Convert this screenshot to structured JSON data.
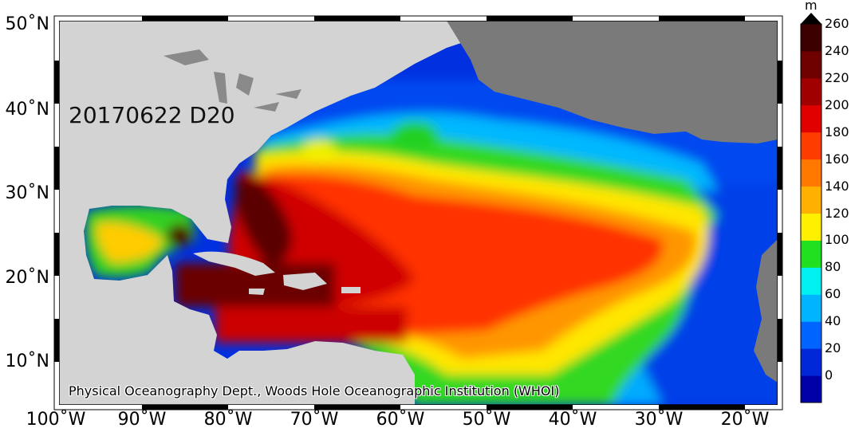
{
  "map": {
    "date_label": "20170622 D20",
    "credit": "Physical Oceanography Dept., Woods Hole Oceanographic Institution (WHOI)",
    "lat_labels": [
      "50˚N",
      "40˚N",
      "30˚N",
      "20˚N",
      "10˚N"
    ],
    "lon_labels": [
      "100˚W",
      "90˚W",
      "80˚W",
      "70˚W",
      "60˚W",
      "50˚W",
      "40˚W",
      "30˚W",
      "20˚W"
    ],
    "land_colors": {
      "north_america": "#d3d3d3",
      "europe_africa": "#7a7a7a"
    }
  },
  "colorbar": {
    "unit": "m",
    "tick_labels": [
      "260",
      "240",
      "220",
      "200",
      "180",
      "160",
      "140",
      "120",
      "100",
      "80",
      "60",
      "40",
      "20",
      "0"
    ],
    "colors": [
      "#0000a8",
      "#0028d8",
      "#0064ff",
      "#00b4ff",
      "#00f0f0",
      "#20e020",
      "#fff000",
      "#ffb000",
      "#ff7800",
      "#ff3c00",
      "#e00000",
      "#a00000",
      "#6e0000",
      "#3c0000"
    ]
  }
}
